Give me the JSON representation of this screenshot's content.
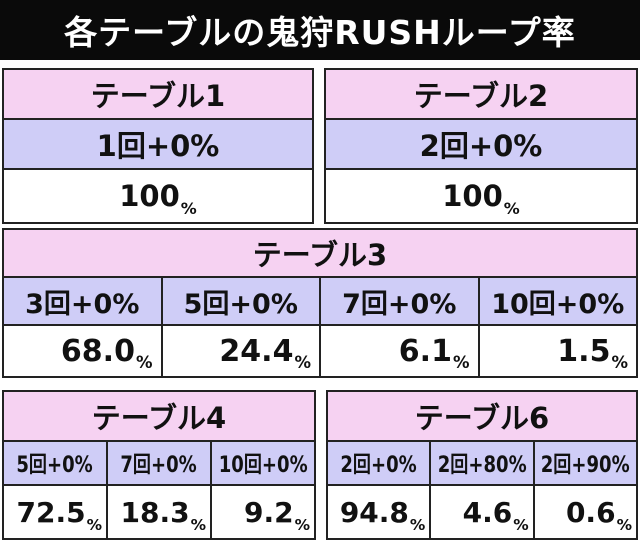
{
  "title": "各テーブルの鬼狩RUSHループ率",
  "percent_sign": "%",
  "table1": {
    "name": "テーブル1",
    "condition": "1回+0%",
    "value": "100"
  },
  "table2": {
    "name": "テーブル2",
    "condition": "2回+0%",
    "value": "100"
  },
  "table3": {
    "name": "テーブル3",
    "columns": [
      {
        "condition": "3回+0%",
        "value": "68.0"
      },
      {
        "condition": "5回+0%",
        "value": "24.4"
      },
      {
        "condition": "7回+0%",
        "value": "6.1"
      },
      {
        "condition": "10回+0%",
        "value": "1.5"
      }
    ]
  },
  "table4": {
    "name": "テーブル4",
    "columns": [
      {
        "condition": "5回+0%",
        "value": "72.5"
      },
      {
        "condition": "7回+0%",
        "value": "18.3"
      },
      {
        "condition": "10回+0%",
        "value": "9.2"
      }
    ]
  },
  "table6": {
    "name": "テーブル6",
    "columns": [
      {
        "condition": "2回+0%",
        "value": "94.8"
      },
      {
        "condition": "2回+80%",
        "value": "4.6"
      },
      {
        "condition": "2回+90%",
        "value": "0.6"
      }
    ]
  },
  "colors": {
    "title_bg": "#0a0a0a",
    "header_pink": "#f6d2f2",
    "condition_lavender": "#cfcdf7",
    "value_white": "#ffffff"
  }
}
